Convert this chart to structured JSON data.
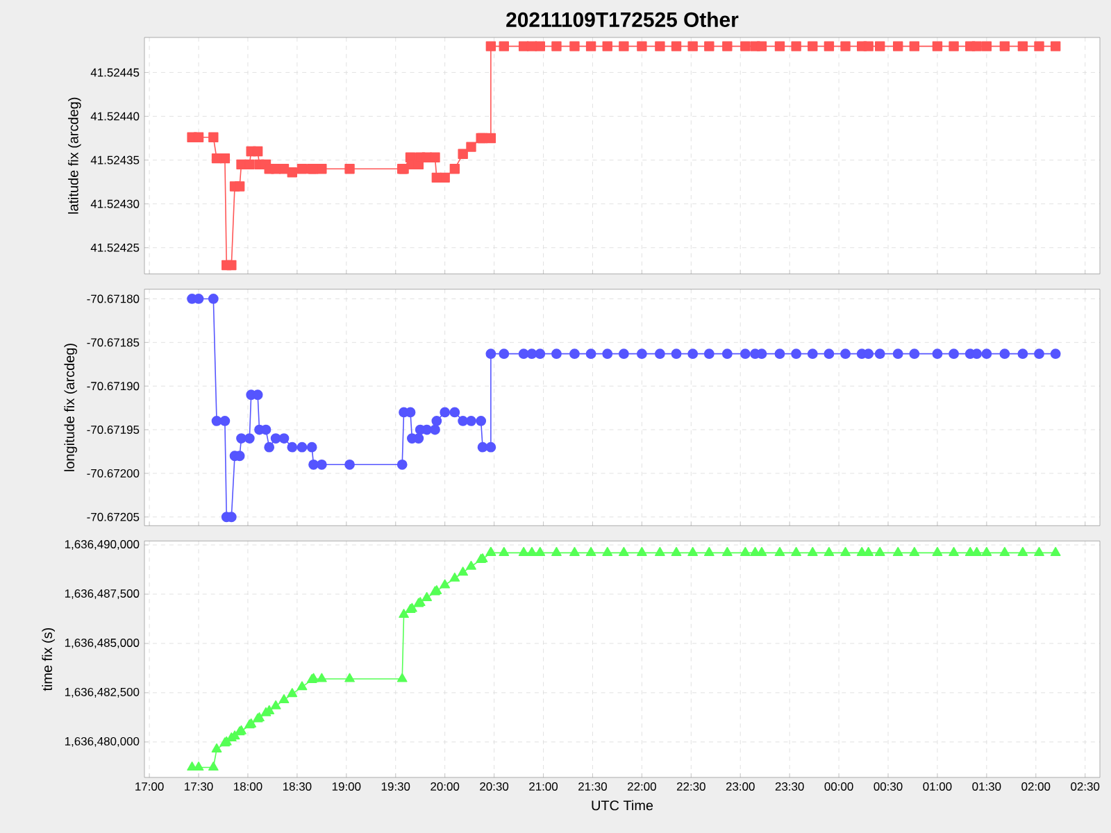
{
  "chart_data": [
    {
      "type": "line",
      "title": "20211109T172525 Other",
      "ylabel": "latitude fix (arcdeg)",
      "marker": "square",
      "grid": true,
      "tick_labels": "y",
      "x": [
        "2021-11-09T17:26",
        "2021-11-09T17:30",
        "2021-11-09T17:39",
        "2021-11-09T17:41",
        "2021-11-09T17:46",
        "2021-11-09T17:47",
        "2021-11-09T17:50",
        "2021-11-09T17:52",
        "2021-11-09T17:55",
        "2021-11-09T17:56",
        "2021-11-09T18:01",
        "2021-11-09T18:02",
        "2021-11-09T18:06",
        "2021-11-09T18:07",
        "2021-11-09T18:11",
        "2021-11-09T18:13",
        "2021-11-09T18:17",
        "2021-11-09T18:22",
        "2021-11-09T18:27",
        "2021-11-09T18:33",
        "2021-11-09T18:39",
        "2021-11-09T18:40",
        "2021-11-09T18:45",
        "2021-11-09T19:02",
        "2021-11-09T19:34",
        "2021-11-09T19:35",
        "2021-11-09T19:39",
        "2021-11-09T19:40",
        "2021-11-09T19:44",
        "2021-11-09T19:45",
        "2021-11-09T19:49",
        "2021-11-09T19:54",
        "2021-11-09T19:55",
        "2021-11-09T20:00",
        "2021-11-09T20:06",
        "2021-11-09T20:11",
        "2021-11-09T20:16",
        "2021-11-09T20:22",
        "2021-11-09T20:23",
        "2021-11-09T20:28",
        "2021-11-09T20:28",
        "2021-11-09T20:36",
        "2021-11-09T20:48",
        "2021-11-09T20:53",
        "2021-11-09T20:58",
        "2021-11-09T21:08",
        "2021-11-09T21:19",
        "2021-11-09T21:29",
        "2021-11-09T21:39",
        "2021-11-09T21:49",
        "2021-11-09T22:00",
        "2021-11-09T22:11",
        "2021-11-09T22:21",
        "2021-11-09T22:31",
        "2021-11-09T22:41",
        "2021-11-09T22:52",
        "2021-11-09T23:03",
        "2021-11-09T23:09",
        "2021-11-09T23:13",
        "2021-11-09T23:24",
        "2021-11-09T23:34",
        "2021-11-09T23:44",
        "2021-11-09T23:54",
        "2021-11-10T00:04",
        "2021-11-10T00:14",
        "2021-11-10T00:18",
        "2021-11-10T00:25",
        "2021-11-10T00:36",
        "2021-11-10T00:46",
        "2021-11-10T01:00",
        "2021-11-10T01:10",
        "2021-11-10T01:20",
        "2021-11-10T01:24",
        "2021-11-10T01:30",
        "2021-11-10T01:41",
        "2021-11-10T01:52",
        "2021-11-10T02:02",
        "2021-11-10T02:12"
      ],
      "series": [
        {
          "color": "#ff5555",
          "values": [
            41.524376,
            41.524376,
            41.524376,
            41.524352,
            41.524352,
            41.52423,
            41.52423,
            41.52432,
            41.52432,
            41.524345,
            41.524345,
            41.52436,
            41.52436,
            41.524345,
            41.524345,
            41.52434,
            41.52434,
            41.52434,
            41.524336,
            41.52434,
            41.52434,
            41.52434,
            41.52434,
            41.52434,
            41.52434,
            41.52434,
            41.524353,
            41.524345,
            41.524345,
            41.524353,
            41.524353,
            41.524353,
            41.52433,
            41.52433,
            41.52434,
            41.524357,
            41.524365,
            41.524375,
            41.524375,
            41.524375,
            41.52448,
            41.52448,
            41.52448,
            41.52448,
            41.52448,
            41.52448,
            41.52448,
            41.52448,
            41.52448,
            41.52448,
            41.52448,
            41.52448,
            41.52448,
            41.52448,
            41.52448,
            41.52448,
            41.52448,
            41.52448,
            41.52448,
            41.52448,
            41.52448,
            41.52448,
            41.52448,
            41.52448,
            41.52448,
            41.52448,
            41.52448,
            41.52448,
            41.52448,
            41.52448,
            41.52448,
            41.52448,
            41.52448,
            41.52448,
            41.52448,
            41.52448,
            41.52448,
            41.52448
          ]
        }
      ],
      "xlim": [
        "2021-11-09T16:57",
        "2021-11-10T02:39"
      ],
      "xticks": [
        {
          "value": "2021-11-09T17:00",
          "label": null
        },
        {
          "value": "2021-11-09T17:30",
          "label": null
        },
        {
          "value": "2021-11-09T18:00",
          "label": null
        },
        {
          "value": "2021-11-09T18:30",
          "label": null
        },
        {
          "value": "2021-11-09T19:00",
          "label": null
        },
        {
          "value": "2021-11-09T19:30",
          "label": null
        },
        {
          "value": "2021-11-09T20:00",
          "label": null
        },
        {
          "value": "2021-11-09T20:30",
          "label": null
        },
        {
          "value": "2021-11-09T21:00",
          "label": null
        },
        {
          "value": "2021-11-09T21:30",
          "label": null
        },
        {
          "value": "2021-11-09T22:00",
          "label": null
        },
        {
          "value": "2021-11-09T22:30",
          "label": null
        },
        {
          "value": "2021-11-09T23:00",
          "label": null
        },
        {
          "value": "2021-11-09T23:30",
          "label": null
        },
        {
          "value": "2021-11-10T00:00",
          "label": null
        },
        {
          "value": "2021-11-10T00:30",
          "label": null
        },
        {
          "value": "2021-11-10T01:00",
          "label": null
        },
        {
          "value": "2021-11-10T01:30",
          "label": null
        },
        {
          "value": "2021-11-10T02:00",
          "label": null
        },
        {
          "value": "2021-11-10T02:30",
          "label": null
        }
      ],
      "ylim": [
        41.52422,
        41.52449
      ],
      "yticks": [
        41.52425,
        {
          "value": 41.5243,
          "label": "41.52430"
        },
        41.52435,
        {
          "value": 41.5244,
          "label": "41.52440"
        },
        41.52445
      ]
    },
    {
      "type": "line",
      "ylabel": "longitude fix (arcdeg)",
      "marker": "circle",
      "grid": true,
      "tick_labels": "y",
      "x": [
        "2021-11-09T17:26",
        "2021-11-09T17:30",
        "2021-11-09T17:39",
        "2021-11-09T17:41",
        "2021-11-09T17:46",
        "2021-11-09T17:47",
        "2021-11-09T17:50",
        "2021-11-09T17:52",
        "2021-11-09T17:55",
        "2021-11-09T17:56",
        "2021-11-09T18:01",
        "2021-11-09T18:02",
        "2021-11-09T18:06",
        "2021-11-09T18:07",
        "2021-11-09T18:11",
        "2021-11-09T18:13",
        "2021-11-09T18:17",
        "2021-11-09T18:22",
        "2021-11-09T18:27",
        "2021-11-09T18:33",
        "2021-11-09T18:39",
        "2021-11-09T18:40",
        "2021-11-09T18:45",
        "2021-11-09T19:02",
        "2021-11-09T19:34",
        "2021-11-09T19:35",
        "2021-11-09T19:39",
        "2021-11-09T19:40",
        "2021-11-09T19:44",
        "2021-11-09T19:45",
        "2021-11-09T19:49",
        "2021-11-09T19:54",
        "2021-11-09T19:55",
        "2021-11-09T20:00",
        "2021-11-09T20:06",
        "2021-11-09T20:11",
        "2021-11-09T20:16",
        "2021-11-09T20:22",
        "2021-11-09T20:23",
        "2021-11-09T20:28",
        "2021-11-09T20:28",
        "2021-11-09T20:36",
        "2021-11-09T20:48",
        "2021-11-09T20:53",
        "2021-11-09T20:58",
        "2021-11-09T21:08",
        "2021-11-09T21:19",
        "2021-11-09T21:29",
        "2021-11-09T21:39",
        "2021-11-09T21:49",
        "2021-11-09T22:00",
        "2021-11-09T22:11",
        "2021-11-09T22:21",
        "2021-11-09T22:31",
        "2021-11-09T22:41",
        "2021-11-09T22:52",
        "2021-11-09T23:03",
        "2021-11-09T23:09",
        "2021-11-09T23:13",
        "2021-11-09T23:24",
        "2021-11-09T23:34",
        "2021-11-09T23:44",
        "2021-11-09T23:54",
        "2021-11-10T00:04",
        "2021-11-10T00:14",
        "2021-11-10T00:18",
        "2021-11-10T00:25",
        "2021-11-10T00:36",
        "2021-11-10T00:46",
        "2021-11-10T01:00",
        "2021-11-10T01:10",
        "2021-11-10T01:20",
        "2021-11-10T01:24",
        "2021-11-10T01:30",
        "2021-11-10T01:41",
        "2021-11-10T01:52",
        "2021-11-10T02:02",
        "2021-11-10T02:12"
      ],
      "series": [
        {
          "color": "#5555ff",
          "values": [
            -70.6718,
            -70.6718,
            -70.6718,
            -70.67194,
            -70.67194,
            -70.67205,
            -70.67205,
            -70.67198,
            -70.67198,
            -70.67196,
            -70.67196,
            -70.67191,
            -70.67191,
            -70.67195,
            -70.67195,
            -70.67197,
            -70.67196,
            -70.67196,
            -70.67197,
            -70.67197,
            -70.67197,
            -70.67199,
            -70.67199,
            -70.67199,
            -70.67199,
            -70.67193,
            -70.67193,
            -70.67196,
            -70.67196,
            -70.67195,
            -70.67195,
            -70.67195,
            -70.67194,
            -70.67193,
            -70.67193,
            -70.67194,
            -70.67194,
            -70.67194,
            -70.67197,
            -70.67197,
            -70.671863,
            -70.671863,
            -70.671863,
            -70.671863,
            -70.671863,
            -70.671863,
            -70.671863,
            -70.671863,
            -70.671863,
            -70.671863,
            -70.671863,
            -70.671863,
            -70.671863,
            -70.671863,
            -70.671863,
            -70.671863,
            -70.671863,
            -70.671863,
            -70.671863,
            -70.671863,
            -70.671863,
            -70.671863,
            -70.671863,
            -70.671863,
            -70.671863,
            -70.671863,
            -70.671863,
            -70.671863,
            -70.671863,
            -70.671863,
            -70.671863,
            -70.671863,
            -70.671863,
            -70.671863,
            -70.671863,
            -70.671863,
            -70.671863,
            -70.671863
          ]
        }
      ],
      "xlim": [
        "2021-11-09T16:57",
        "2021-11-10T02:39"
      ],
      "xticks": [
        {
          "value": "2021-11-09T17:00",
          "label": null
        },
        {
          "value": "2021-11-09T17:30",
          "label": null
        },
        {
          "value": "2021-11-09T18:00",
          "label": null
        },
        {
          "value": "2021-11-09T18:30",
          "label": null
        },
        {
          "value": "2021-11-09T19:00",
          "label": null
        },
        {
          "value": "2021-11-09T19:30",
          "label": null
        },
        {
          "value": "2021-11-09T20:00",
          "label": null
        },
        {
          "value": "2021-11-09T20:30",
          "label": null
        },
        {
          "value": "2021-11-09T21:00",
          "label": null
        },
        {
          "value": "2021-11-09T21:30",
          "label": null
        },
        {
          "value": "2021-11-09T22:00",
          "label": null
        },
        {
          "value": "2021-11-09T22:30",
          "label": null
        },
        {
          "value": "2021-11-09T23:00",
          "label": null
        },
        {
          "value": "2021-11-09T23:30",
          "label": null
        },
        {
          "value": "2021-11-10T00:00",
          "label": null
        },
        {
          "value": "2021-11-10T00:30",
          "label": null
        },
        {
          "value": "2021-11-10T01:00",
          "label": null
        },
        {
          "value": "2021-11-10T01:30",
          "label": null
        },
        {
          "value": "2021-11-10T02:00",
          "label": null
        },
        {
          "value": "2021-11-10T02:30",
          "label": null
        }
      ],
      "ylim": [
        -70.67206,
        -70.671789
      ],
      "yticks": [
        -70.67205,
        {
          "value": -70.672,
          "label": "-70.67200"
        },
        -70.67195,
        {
          "value": -70.6719,
          "label": "-70.67190"
        },
        -70.67185,
        {
          "value": -70.6718,
          "label": "-70.67180"
        }
      ]
    },
    {
      "type": "line",
      "xlabel": "UTC Time",
      "ylabel": "time fix (s)",
      "marker": "triangle",
      "grid": true,
      "x": [
        "2021-11-09T17:26",
        "2021-11-09T17:30",
        "2021-11-09T17:39",
        "2021-11-09T17:41",
        "2021-11-09T17:46",
        "2021-11-09T17:47",
        "2021-11-09T17:50",
        "2021-11-09T17:52",
        "2021-11-09T17:55",
        "2021-11-09T17:56",
        "2021-11-09T18:01",
        "2021-11-09T18:02",
        "2021-11-09T18:06",
        "2021-11-09T18:07",
        "2021-11-09T18:11",
        "2021-11-09T18:13",
        "2021-11-09T18:17",
        "2021-11-09T18:22",
        "2021-11-09T18:27",
        "2021-11-09T18:33",
        "2021-11-09T18:39",
        "2021-11-09T18:40",
        "2021-11-09T18:45",
        "2021-11-09T19:02",
        "2021-11-09T19:34",
        "2021-11-09T19:35",
        "2021-11-09T19:39",
        "2021-11-09T19:40",
        "2021-11-09T19:44",
        "2021-11-09T19:45",
        "2021-11-09T19:49",
        "2021-11-09T19:54",
        "2021-11-09T19:55",
        "2021-11-09T20:00",
        "2021-11-09T20:06",
        "2021-11-09T20:11",
        "2021-11-09T20:16",
        "2021-11-09T20:22",
        "2021-11-09T20:23",
        "2021-11-09T20:28",
        "2021-11-09T20:28",
        "2021-11-09T20:36",
        "2021-11-09T20:48",
        "2021-11-09T20:53",
        "2021-11-09T20:58",
        "2021-11-09T21:08",
        "2021-11-09T21:19",
        "2021-11-09T21:29",
        "2021-11-09T21:39",
        "2021-11-09T21:49",
        "2021-11-09T22:00",
        "2021-11-09T22:11",
        "2021-11-09T22:21",
        "2021-11-09T22:31",
        "2021-11-09T22:41",
        "2021-11-09T22:52",
        "2021-11-09T23:03",
        "2021-11-09T23:09",
        "2021-11-09T23:13",
        "2021-11-09T23:24",
        "2021-11-09T23:34",
        "2021-11-09T23:44",
        "2021-11-09T23:54",
        "2021-11-10T00:04",
        "2021-11-10T00:14",
        "2021-11-10T00:18",
        "2021-11-10T00:25",
        "2021-11-10T00:36",
        "2021-11-10T00:46",
        "2021-11-10T01:00",
        "2021-11-10T01:10",
        "2021-11-10T01:20",
        "2021-11-10T01:24",
        "2021-11-10T01:30",
        "2021-11-10T01:41",
        "2021-11-10T01:52",
        "2021-11-10T02:02",
        "2021-11-10T02:12"
      ],
      "series": [
        {
          "color": "#55ff55",
          "values": [
            1636478710,
            1636478710,
            1636478710,
            1636479630,
            1636479940,
            1636479990,
            1636480190,
            1636480290,
            1636480500,
            1636480550,
            1636480850,
            1636480900,
            1636481160,
            1636481210,
            1636481470,
            1636481570,
            1636481820,
            1636482130,
            1636482440,
            1636482790,
            1636483150,
            1636483200,
            1636483200,
            1636483200,
            1636483200,
            1636486460,
            1636486710,
            1636486760,
            1636487010,
            1636487060,
            1636487310,
            1636487610,
            1636487660,
            1636487960,
            1636488300,
            1636488600,
            1636488900,
            1636489250,
            1636489280,
            1636489600,
            1636489600,
            1636489600,
            1636489600,
            1636489600,
            1636489600,
            1636489600,
            1636489600,
            1636489600,
            1636489600,
            1636489600,
            1636489600,
            1636489600,
            1636489600,
            1636489600,
            1636489600,
            1636489600,
            1636489600,
            1636489600,
            1636489600,
            1636489600,
            1636489600,
            1636489600,
            1636489600,
            1636489600,
            1636489600,
            1636489600,
            1636489600,
            1636489600,
            1636489600,
            1636489600,
            1636489600,
            1636489600,
            1636489600,
            1636489600,
            1636489600,
            1636489600,
            1636489600,
            1636489600
          ]
        }
      ],
      "xlim": [
        "2021-11-09T16:57",
        "2021-11-10T02:39"
      ],
      "xticks": [
        {
          "value": "2021-11-09T17:00",
          "label": "17:00"
        },
        {
          "value": "2021-11-09T17:30",
          "label": "17:30"
        },
        {
          "value": "2021-11-09T18:00",
          "label": "18:00"
        },
        {
          "value": "2021-11-09T18:30",
          "label": "18:30"
        },
        {
          "value": "2021-11-09T19:00",
          "label": "19:00"
        },
        {
          "value": "2021-11-09T19:30",
          "label": "19:30"
        },
        {
          "value": "2021-11-09T20:00",
          "label": "20:00"
        },
        {
          "value": "2021-11-09T20:30",
          "label": "20:30"
        },
        {
          "value": "2021-11-09T21:00",
          "label": "21:00"
        },
        {
          "value": "2021-11-09T21:30",
          "label": "21:30"
        },
        {
          "value": "2021-11-09T22:00",
          "label": "22:00"
        },
        {
          "value": "2021-11-09T22:30",
          "label": "22:30"
        },
        {
          "value": "2021-11-09T23:00",
          "label": "23:00"
        },
        {
          "value": "2021-11-09T23:30",
          "label": "23:30"
        },
        {
          "value": "2021-11-10T00:00",
          "label": "00:00"
        },
        {
          "value": "2021-11-10T00:30",
          "label": "00:30"
        },
        {
          "value": "2021-11-10T01:00",
          "label": "01:00"
        },
        {
          "value": "2021-11-10T01:30",
          "label": "01:30"
        },
        {
          "value": "2021-11-10T02:00",
          "label": "02:00"
        },
        {
          "value": "2021-11-10T02:30",
          "label": "02:30"
        }
      ],
      "ylim": [
        1636478200,
        1636490200
      ],
      "yticks": [
        {
          "value": 1636480000,
          "label": "1,636,480,000"
        },
        {
          "value": 1636482500,
          "label": "1,636,482,500"
        },
        {
          "value": 1636485000,
          "label": "1,636,485,000"
        },
        {
          "value": 1636487500,
          "label": "1,636,487,500"
        },
        {
          "value": 1636490000,
          "label": "1,636,490,000"
        }
      ]
    }
  ]
}
